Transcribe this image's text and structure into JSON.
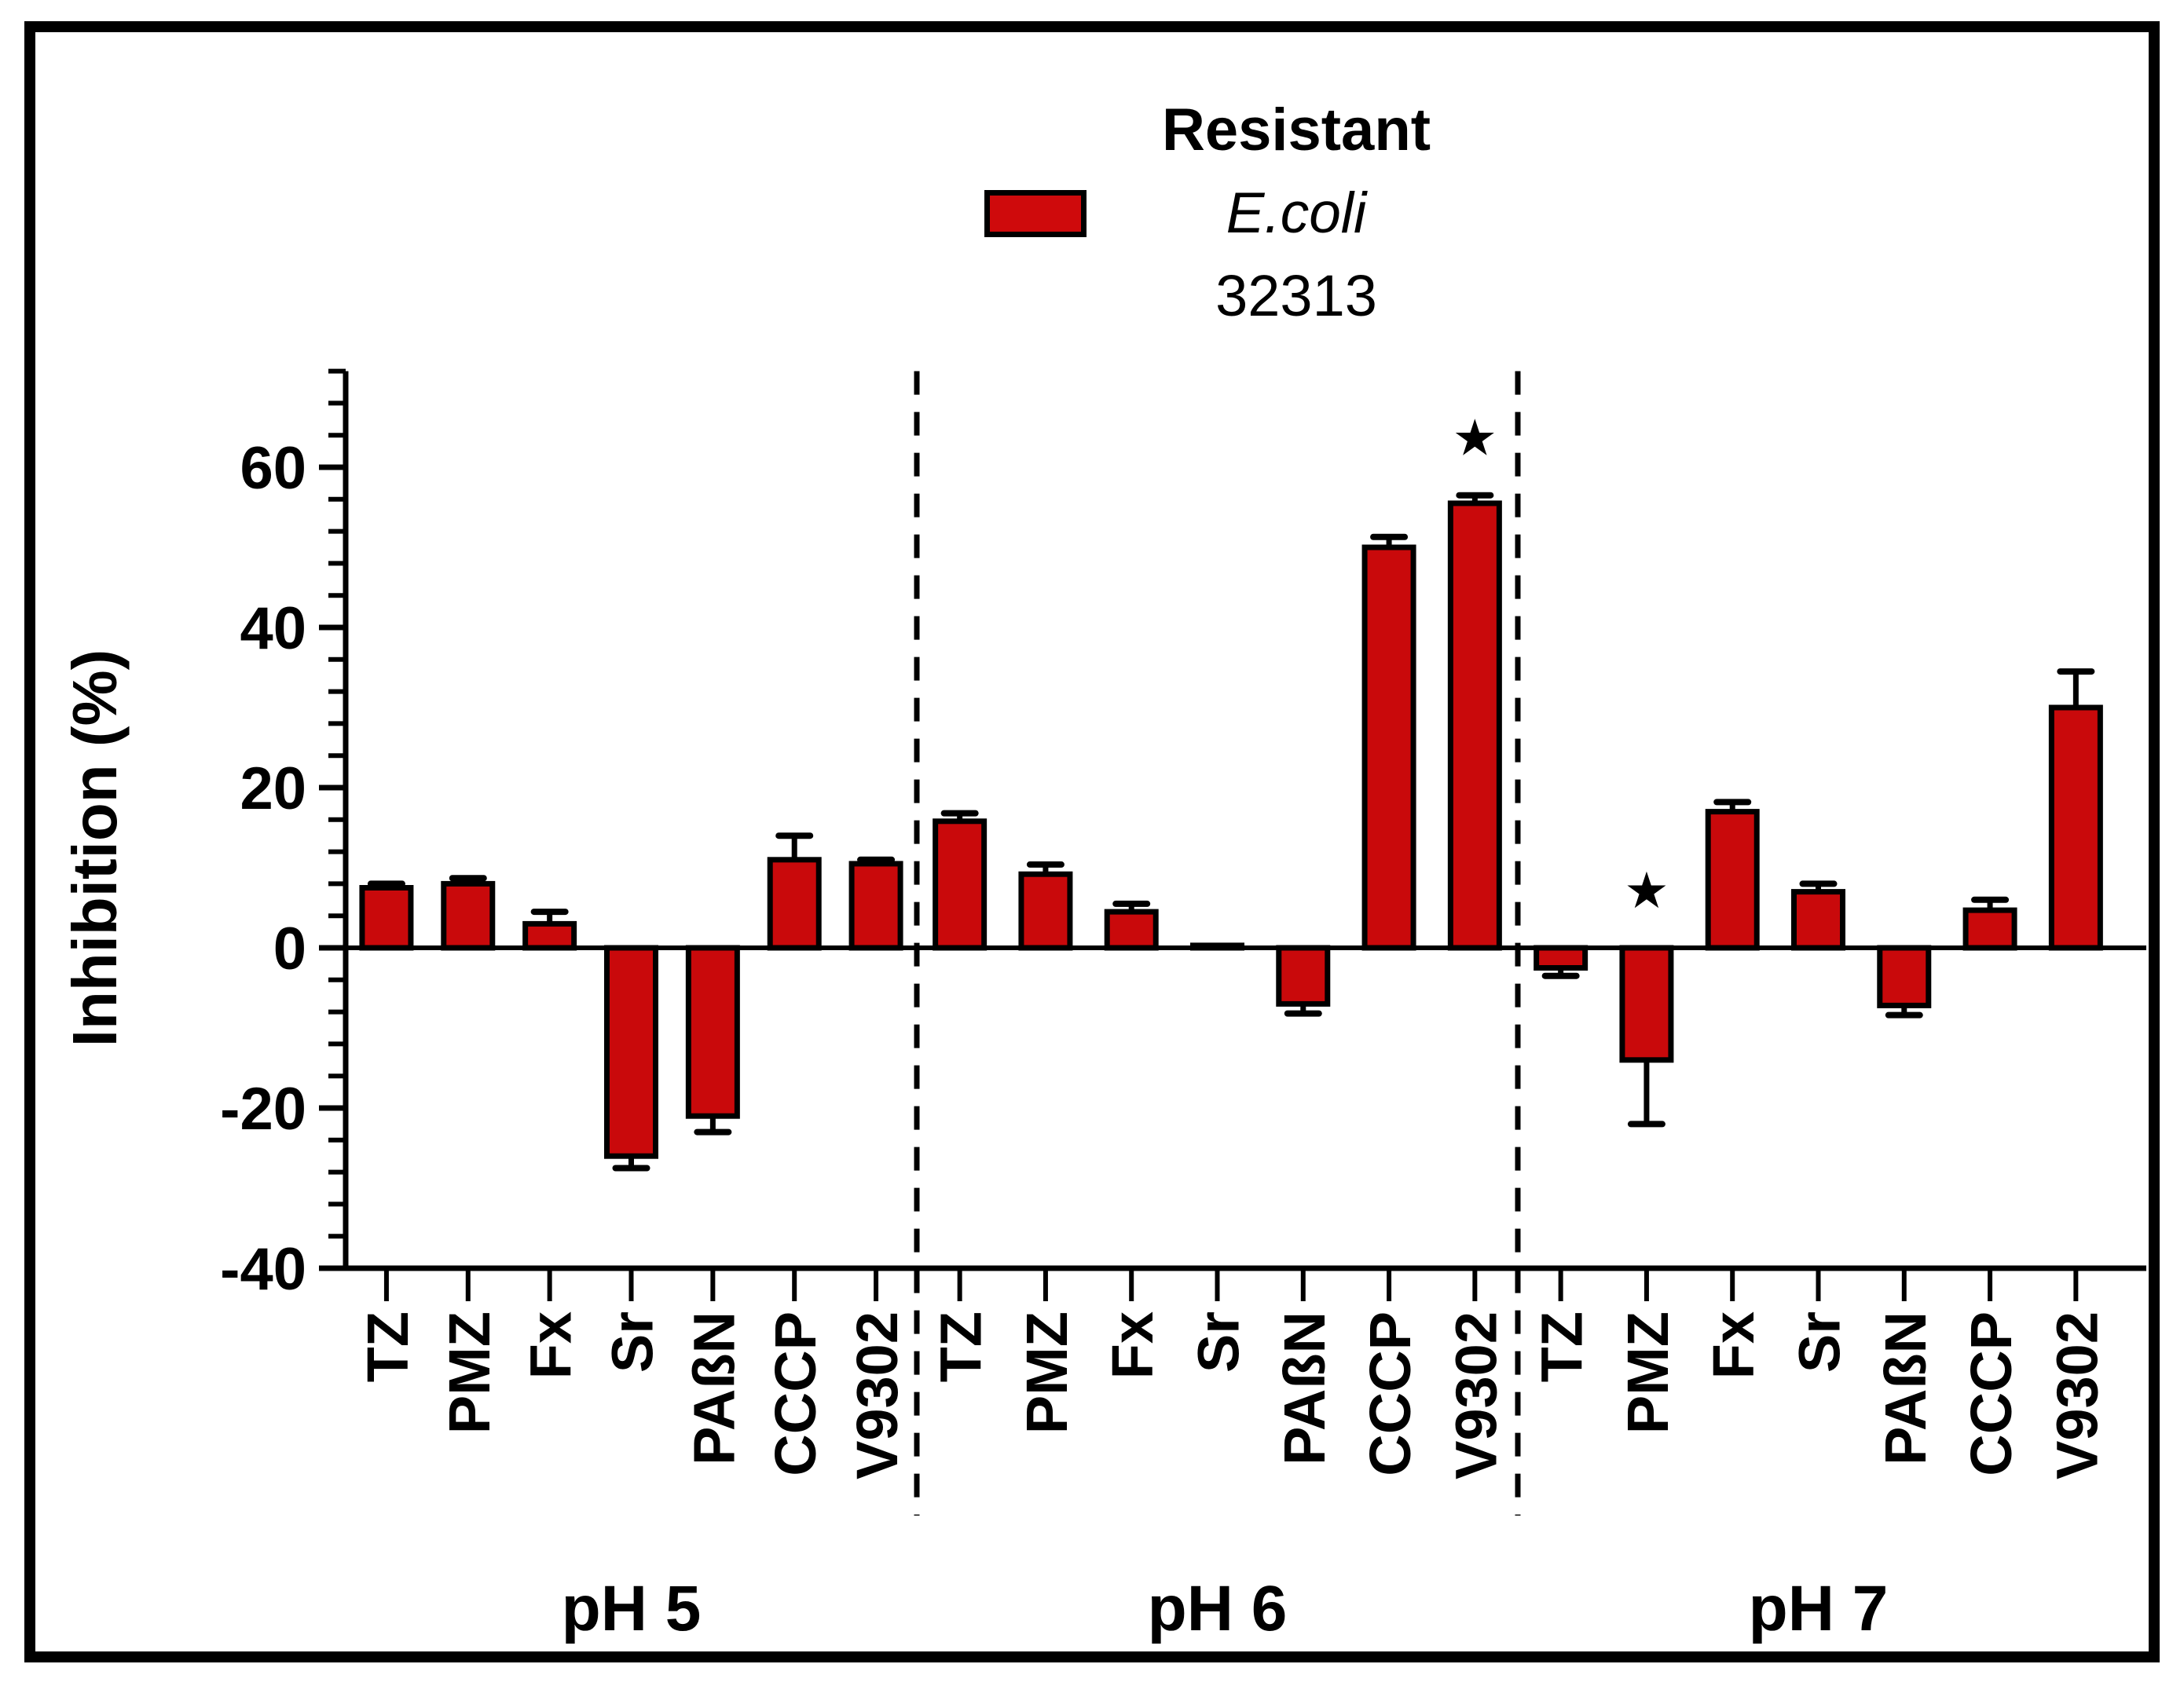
{
  "legend": {
    "line1": "Resistant",
    "line2": "E.coli",
    "line3": "32313",
    "swatch_color": "#cf0a0c"
  },
  "chart_data": {
    "type": "bar",
    "title": "Resistant E.coli 32313",
    "ylabel": "Inhibition (%)",
    "xlabel": "",
    "ylim": [
      -40,
      72
    ],
    "grid": false,
    "legend_position": "top-center",
    "bar_color": "#c9090b",
    "significance_marker": "★",
    "y_axis": {
      "major_ticks": [
        60,
        40,
        20,
        0,
        -20,
        -40
      ],
      "minor_step": 4
    },
    "categories": [
      "TZ",
      "PMZ",
      "Fx",
      "Sr",
      "PAßN",
      "CCCP",
      "V9302"
    ],
    "groups": [
      {
        "label": "pH 5",
        "values": [
          7.5,
          8,
          3,
          -26,
          -21,
          11,
          10.5
        ],
        "errors": [
          0.5,
          0.7,
          1.5,
          1.5,
          2,
          3,
          0.5
        ],
        "stars": [
          false,
          false,
          false,
          false,
          false,
          false,
          false
        ]
      },
      {
        "label": "pH 6",
        "values": [
          15.8,
          9.2,
          4.5,
          0.3,
          -7,
          50,
          55.5
        ],
        "errors": [
          1,
          1.2,
          1,
          0,
          1.2,
          1.3,
          1
        ],
        "stars": [
          false,
          false,
          false,
          false,
          false,
          false,
          true
        ]
      },
      {
        "label": "pH 7",
        "values": [
          -2.5,
          -14,
          17,
          7,
          -7.2,
          4.7,
          30
        ],
        "errors": [
          1,
          8,
          1.2,
          1,
          1.2,
          1.3,
          4.5
        ],
        "stars": [
          false,
          true,
          false,
          false,
          false,
          false,
          false
        ]
      }
    ]
  }
}
